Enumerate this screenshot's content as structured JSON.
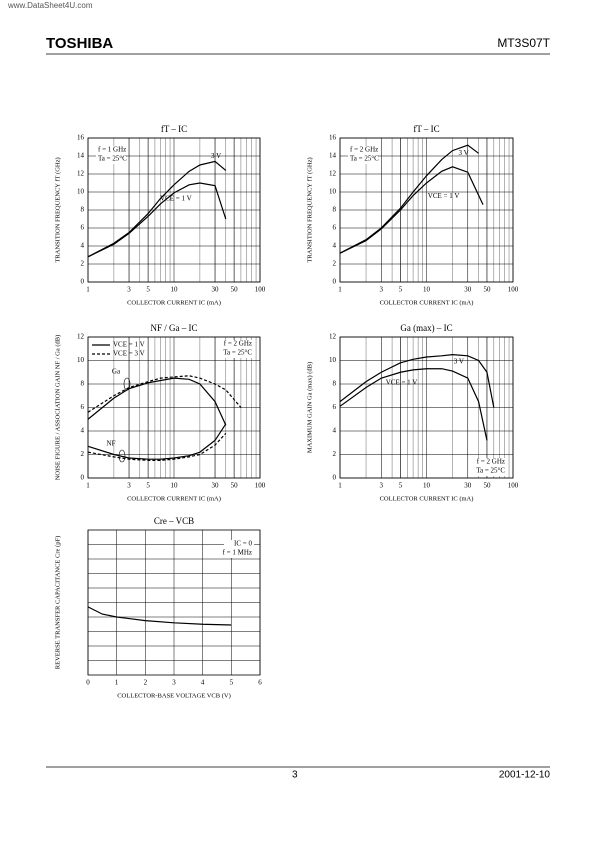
{
  "header": {
    "watermark": "www.DataSheet4U.com",
    "brand": "TOSHIBA",
    "part": "MT3S07T"
  },
  "footer": {
    "page": "3",
    "date": "2001-12-10"
  },
  "chart_data": [
    {
      "type": "line",
      "title": "fT – IC",
      "xlabel": "COLLECTOR CURRENT IC (mA)",
      "ylabel": "TRANSITION FREQUENCY fT (GHz)",
      "log_x": true,
      "xlim": [
        1,
        100
      ],
      "xticks": [
        1,
        3,
        5,
        10,
        30,
        50,
        100
      ],
      "ylim": [
        0,
        16
      ],
      "yticks": [
        0,
        2,
        4,
        6,
        8,
        10,
        12,
        14,
        16
      ],
      "grid": true,
      "notes": [
        "f = 1 GHz",
        "Ta = 25°C"
      ],
      "series": [
        {
          "name": "3 V",
          "color": "#000",
          "dash": false,
          "x": [
            1,
            2,
            3,
            5,
            7,
            10,
            15,
            20,
            30,
            40
          ],
          "values": [
            2.8,
            4.3,
            5.5,
            7.6,
            9.3,
            10.8,
            12.3,
            13,
            13.4,
            12.4
          ]
        },
        {
          "name": "VCE = 1 V",
          "color": "#000",
          "dash": false,
          "x": [
            1,
            2,
            3,
            5,
            7,
            10,
            15,
            20,
            30,
            40
          ],
          "values": [
            2.8,
            4.2,
            5.4,
            7.3,
            8.7,
            9.9,
            10.8,
            11,
            10.7,
            7
          ]
        }
      ]
    },
    {
      "type": "line",
      "title": "fT – IC",
      "xlabel": "COLLECTOR CURRENT IC (mA)",
      "ylabel": "TRANSITION FREQUENCY fT (GHz)",
      "log_x": true,
      "xlim": [
        1,
        100
      ],
      "xticks": [
        1,
        3,
        5,
        10,
        30,
        50,
        100
      ],
      "ylim": [
        0,
        16
      ],
      "yticks": [
        0,
        2,
        4,
        6,
        8,
        10,
        12,
        14,
        16
      ],
      "grid": true,
      "notes": [
        "f = 2 GHz",
        "Ta = 25°C"
      ],
      "series": [
        {
          "name": "3 V",
          "color": "#000",
          "dash": false,
          "x": [
            1,
            2,
            3,
            5,
            7,
            10,
            15,
            20,
            30,
            40
          ],
          "values": [
            3.2,
            4.7,
            6,
            8.2,
            10,
            11.8,
            13.6,
            14.6,
            15.2,
            14.3
          ]
        },
        {
          "name": "VCE = 1 V",
          "color": "#000",
          "dash": false,
          "x": [
            1,
            2,
            3,
            5,
            7,
            10,
            15,
            20,
            30,
            45
          ],
          "values": [
            3.2,
            4.6,
            5.9,
            8,
            9.6,
            11,
            12.3,
            12.8,
            12.2,
            8.6
          ]
        }
      ]
    },
    {
      "type": "noise",
      "title": "NF / Ga – IC",
      "xlabel": "COLLECTOR CURRENT IC (mA)",
      "ylabel": "NOISE FIGURE / ASSOCIATION GAIN NF / Ga (dB)",
      "log_x": true,
      "xlim": [
        1,
        100
      ],
      "xticks": [
        1,
        3,
        5,
        10,
        30,
        50,
        100
      ],
      "ylim": [
        0,
        12
      ],
      "yticks": [
        0,
        2,
        4,
        6,
        8,
        10,
        12
      ],
      "grid": true,
      "notes": [
        "f = 2 GHz",
        "Ta = 25°C"
      ],
      "annotations": [
        "Ga",
        "NF"
      ],
      "series": [
        {
          "name": "VCE = 1 V",
          "color": "#000",
          "dash": false,
          "ga": {
            "x": [
              1,
              2,
              3,
              5,
              7,
              10,
              15,
              20,
              30,
              40
            ],
            "values": [
              5,
              6.8,
              7.6,
              8.1,
              8.3,
              8.5,
              8.4,
              8,
              6.5,
              4.5
            ]
          },
          "nf": {
            "x": [
              1,
              2,
              3,
              5,
              7,
              10,
              15,
              20,
              30,
              40
            ],
            "values": [
              2.7,
              2,
              1.7,
              1.6,
              1.6,
              1.7,
              1.9,
              2.2,
              3.2,
              4.6
            ]
          }
        },
        {
          "name": "VCE = 3 V",
          "color": "#000",
          "dash": true,
          "ga": {
            "x": [
              1,
              2,
              3,
              5,
              7,
              10,
              15,
              20,
              30,
              40,
              60
            ],
            "values": [
              5.6,
              7,
              7.7,
              8.2,
              8.5,
              8.6,
              8.7,
              8.5,
              8,
              7.5,
              6
            ]
          },
          "nf": {
            "x": [
              1,
              2,
              3,
              5,
              7,
              10,
              15,
              20,
              30,
              40
            ],
            "values": [
              2.2,
              1.8,
              1.6,
              1.5,
              1.5,
              1.6,
              1.8,
              2,
              2.8,
              3.8
            ]
          }
        }
      ]
    },
    {
      "type": "line",
      "title": "Ga (max) – IC",
      "xlabel": "COLLECTOR CURRENT IC (mA)",
      "ylabel": "MAXIMUM GAIN Ga (max) (dB)",
      "log_x": true,
      "xlim": [
        1,
        100
      ],
      "xticks": [
        1,
        3,
        5,
        10,
        30,
        50,
        100
      ],
      "ylim": [
        0,
        12
      ],
      "yticks": [
        0,
        2,
        4,
        6,
        8,
        10,
        12
      ],
      "grid": true,
      "notes": [
        "f = 2 GHz",
        "Ta = 25°C"
      ],
      "series": [
        {
          "name": "3 V",
          "color": "#000",
          "dash": false,
          "x": [
            1,
            2,
            3,
            5,
            7,
            10,
            15,
            20,
            30,
            40,
            50,
            60
          ],
          "values": [
            6.5,
            8.2,
            9,
            9.8,
            10.1,
            10.3,
            10.4,
            10.5,
            10.4,
            10,
            9,
            6
          ]
        },
        {
          "name": "VCE = 1 V",
          "color": "#000",
          "dash": false,
          "x": [
            1,
            2,
            3,
            5,
            7,
            10,
            15,
            20,
            30,
            40,
            50
          ],
          "values": [
            6.1,
            7.7,
            8.5,
            9,
            9.2,
            9.3,
            9.3,
            9.1,
            8.5,
            6.5,
            3.2
          ]
        }
      ]
    },
    {
      "type": "line",
      "title": "Cre – VCB",
      "xlabel": "COLLECTOR-BASE VOLTAGE VCB (V)",
      "ylabel": "REVERSE TRANSFER CAPACITANCE Cre (pF)",
      "log_x": false,
      "xlim": [
        0,
        6
      ],
      "xticks": [
        0,
        1,
        2,
        3,
        4,
        5,
        6
      ],
      "ylim": [
        0,
        1
      ],
      "ygrid": [
        0.1,
        0.2,
        0.3,
        0.4,
        0.5,
        0.6,
        0.7,
        0.8,
        0.9
      ],
      "grid": true,
      "notes": [
        "IC = 0",
        "f = 1 MHz"
      ],
      "series": [
        {
          "color": "#000",
          "dash": false,
          "x": [
            0,
            0.5,
            1,
            2,
            3,
            4,
            5
          ],
          "values": [
            0.47,
            0.42,
            0.4,
            0.375,
            0.36,
            0.35,
            0.345
          ]
        }
      ]
    }
  ]
}
